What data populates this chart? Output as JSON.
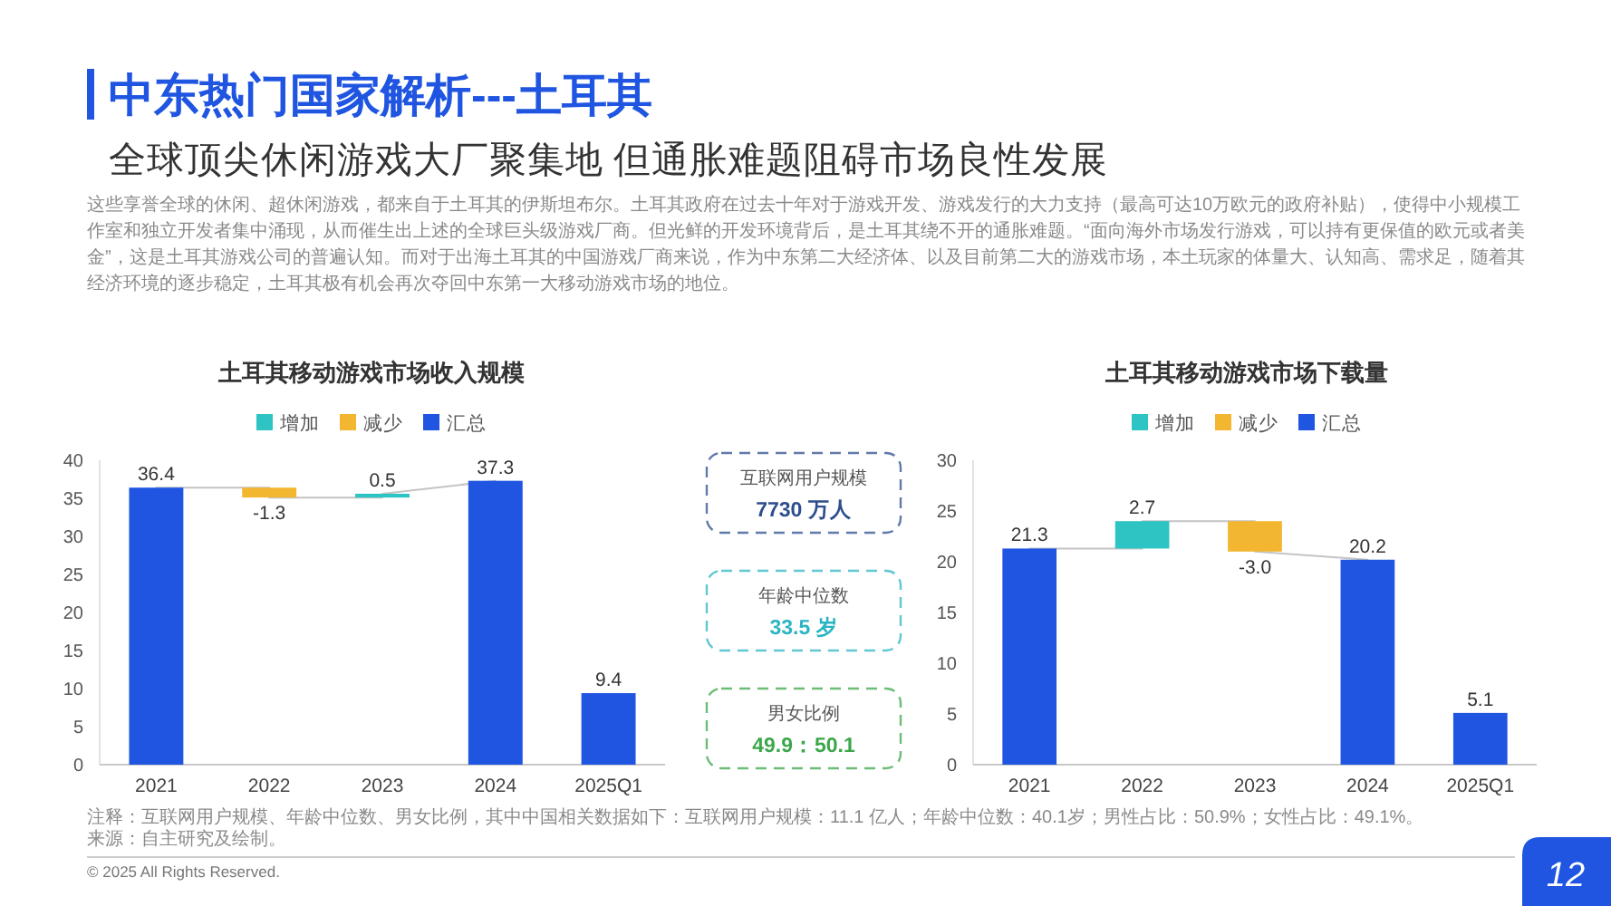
{
  "chart_data": [
    {
      "type": "other",
      "title": "中东热门国家解析---土耳其",
      "subtitle": "全球顶尖休闲游戏大厂聚集地 但通胀难题阻碍市场良性发展",
      "annotations": [
        "这些享誉全球的休闲、超休闲游戏，都来自于土耳其的伊斯坦布尔。土耳其政府在过去十年对于游戏开发、游戏发行的大力支持（最高可达10万欧元的政府补贴），使得中小规模工作室和独立开发者集中涌现，从而催生出上述的全球巨头级游戏厂商。但光鲜的开发环境背后，是土耳其绕不开的通胀难题。“面向海外市场发行游戏，可以持有更保值的欧元或者美金”，这是土耳其游戏公司的普遍认知。而对于出海土耳其的中国游戏厂商来说，作为中东第二大经济体、以及目前第二大的游戏市场，本土玩家的体量大、认知高、需求足，随着其经济环境的逐步稳定，土耳其极有机会再次夺回中东第一大移动游戏市场的地位。"
      ]
    },
    {
      "type": "bar",
      "title": "土耳其移动游戏市场收入规模",
      "categories": [
        "2021",
        "2022",
        "2023",
        "2024",
        "2025Q1"
      ],
      "series": [
        {
          "name": "增加",
          "color": "#2ec4c4",
          "values": [
            null,
            null,
            0.5,
            null,
            null
          ],
          "base": [
            null,
            null,
            35.1,
            null,
            null
          ],
          "value_labels": [
            null,
            null,
            "0.5",
            null,
            null
          ]
        },
        {
          "name": "减少",
          "color": "#f2b630",
          "values": [
            null,
            -1.3,
            null,
            null,
            null
          ],
          "base": [
            null,
            36.4,
            null,
            null,
            null
          ],
          "value_labels": [
            null,
            "-1.3",
            null,
            null,
            null
          ]
        },
        {
          "name": "汇总",
          "color": "#1f55e0",
          "values": [
            36.4,
            null,
            null,
            37.3,
            9.4
          ],
          "value_labels": [
            "36.4",
            null,
            null,
            "37.3",
            "9.4"
          ]
        },
        {
          "type": "line",
          "color": "#c4c4c4",
          "values": [
            36.4,
            36.4,
            null,
            null,
            null
          ]
        },
        {
          "type": "line",
          "color": "#c4c4c4",
          "values": [
            null,
            35.1,
            35.1,
            null,
            null
          ]
        },
        {
          "type": "line",
          "color": "#c4c4c4",
          "values": [
            null,
            null,
            35.6,
            37.3,
            null
          ]
        }
      ],
      "ylim": [
        0,
        40
      ],
      "yticks": [
        0,
        5,
        10,
        15,
        20,
        25,
        30,
        35,
        40
      ],
      "legend": "top"
    },
    {
      "type": "other",
      "annotations": [
        "互联网用户规模",
        "7730 万人",
        "年龄中位数",
        "33.5 岁",
        "男女比例",
        "49.9：50.1"
      ],
      "colors": [
        "#2d4e8c",
        "#2bb4c4",
        "#3ca64a"
      ]
    },
    {
      "type": "bar",
      "title": "土耳其移动游戏市场下载量",
      "categories": [
        "2021",
        "2022",
        "2023",
        "2024",
        "2025Q1"
      ],
      "series": [
        {
          "name": "增加",
          "color": "#2ec4c4",
          "values": [
            null,
            2.7,
            null,
            null,
            null
          ],
          "base": [
            null,
            21.3,
            null,
            null,
            null
          ],
          "value_labels": [
            null,
            "2.7",
            null,
            null,
            null
          ]
        },
        {
          "name": "减少",
          "color": "#f2b630",
          "values": [
            null,
            null,
            -3.0,
            null,
            null
          ],
          "base": [
            null,
            null,
            24.0,
            null,
            null
          ],
          "value_labels": [
            null,
            null,
            "-3.0",
            null,
            null
          ]
        },
        {
          "name": "汇总",
          "color": "#1f55e0",
          "values": [
            21.3,
            null,
            null,
            20.2,
            5.1
          ],
          "value_labels": [
            "21.3",
            null,
            null,
            "20.2",
            "5.1"
          ]
        },
        {
          "type": "line",
          "color": "#c4c4c4",
          "values": [
            21.3,
            21.3,
            null,
            null,
            null
          ]
        },
        {
          "type": "line",
          "color": "#c4c4c4",
          "values": [
            null,
            24.0,
            24.0,
            null,
            null
          ]
        },
        {
          "type": "line",
          "color": "#c4c4c4",
          "values": [
            null,
            null,
            21.0,
            20.2,
            null
          ]
        }
      ],
      "ylim": [
        0,
        30
      ],
      "yticks": [
        0,
        5,
        10,
        15,
        20,
        25,
        30
      ],
      "legend": "top"
    },
    {
      "type": "other",
      "annotations": [
        "注释：互联网用户规模、年龄中位数、男女比例，其中中国相关数据如下：互联网用户规模：11.1 亿人；年龄中位数：40.1岁；男性占比：50.9%；女性占比：49.1%。",
        "来源：自主研究及绘制。",
        "© 2025 All Rights Reserved.",
        "12"
      ]
    }
  ]
}
